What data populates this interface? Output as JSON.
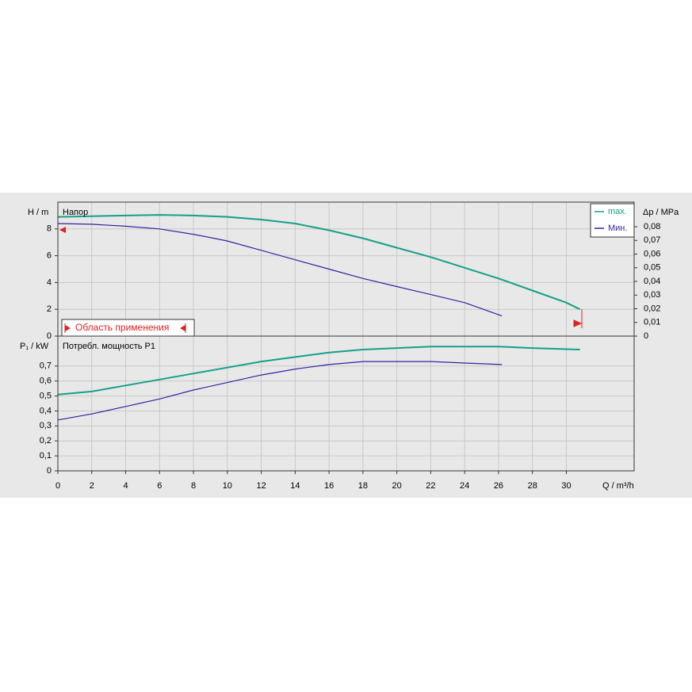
{
  "chart_data": [
    {
      "type": "line",
      "ylabel": "H / m",
      "title": "Напор",
      "y2label": "Δp / MPa",
      "annotation": "Область применения",
      "xlim": [
        0,
        34
      ],
      "ylim": [
        0,
        10
      ],
      "yticks": [
        0,
        2,
        4,
        6,
        8
      ],
      "y2lim": [
        0,
        0.098
      ],
      "y2ticks": [
        0,
        {
          "value": 0.01,
          "label": "0,01"
        },
        {
          "value": 0.02,
          "label": "0,02"
        },
        {
          "value": 0.03,
          "label": "0,03"
        },
        {
          "value": 0.04,
          "label": "0,04"
        },
        {
          "value": 0.05,
          "label": "0,05"
        },
        {
          "value": 0.06,
          "label": "0,06"
        },
        {
          "value": 0.07,
          "label": "0,07"
        },
        {
          "value": 0.08,
          "label": "0,08"
        }
      ],
      "grid": true,
      "series": [
        {
          "name": "max.",
          "color": "#13a08a",
          "x": [
            0,
            2,
            4,
            6,
            8,
            10,
            12,
            14,
            16,
            18,
            20,
            22,
            24,
            26,
            28,
            30,
            30.8
          ],
          "values": [
            8.9,
            8.95,
            9.0,
            9.05,
            9.0,
            8.9,
            8.7,
            8.4,
            7.9,
            7.3,
            6.6,
            5.9,
            5.1,
            4.3,
            3.4,
            2.5,
            2.0
          ]
        },
        {
          "name": "Мин.",
          "color": "#3a1fa0",
          "x": [
            0,
            2,
            4,
            6,
            8,
            10,
            12,
            14,
            16,
            18,
            20,
            22,
            24,
            26.2
          ],
          "values": [
            8.4,
            8.35,
            8.2,
            8.0,
            7.6,
            7.1,
            6.4,
            5.7,
            5.0,
            4.3,
            3.7,
            3.1,
            2.5,
            1.5
          ]
        }
      ]
    },
    {
      "type": "line",
      "ylabel": "P₁ / kW",
      "title": "Потребл. мощность P1",
      "xlabel": "Q / m³/h",
      "xlim": [
        0,
        34
      ],
      "xticks": [
        0,
        2,
        4,
        6,
        8,
        10,
        12,
        14,
        16,
        18,
        20,
        22,
        24,
        26,
        28,
        30
      ],
      "ylim": [
        0,
        0.9
      ],
      "yticks": [
        0,
        {
          "value": 0.1,
          "label": "0,1"
        },
        {
          "value": 0.2,
          "label": "0,2"
        },
        {
          "value": 0.3,
          "label": "0,3"
        },
        {
          "value": 0.4,
          "label": "0,4"
        },
        {
          "value": 0.5,
          "label": "0,5"
        },
        {
          "value": 0.6,
          "label": "0,6"
        },
        {
          "value": 0.7,
          "label": "0,7"
        }
      ],
      "grid": true,
      "series": [
        {
          "color": "#13a08a",
          "x": [
            0,
            2,
            4,
            6,
            8,
            10,
            12,
            14,
            16,
            18,
            20,
            22,
            24,
            26,
            28,
            30.8
          ],
          "values": [
            0.51,
            0.53,
            0.57,
            0.61,
            0.65,
            0.69,
            0.73,
            0.76,
            0.79,
            0.81,
            0.82,
            0.83,
            0.83,
            0.83,
            0.82,
            0.81
          ]
        },
        {
          "color": "#3a1fa0",
          "x": [
            0,
            2,
            4,
            6,
            8,
            10,
            12,
            14,
            16,
            18,
            20,
            22,
            24,
            26.2
          ],
          "values": [
            0.34,
            0.38,
            0.43,
            0.48,
            0.54,
            0.59,
            0.64,
            0.68,
            0.71,
            0.73,
            0.73,
            0.73,
            0.72,
            0.71
          ]
        }
      ]
    }
  ]
}
